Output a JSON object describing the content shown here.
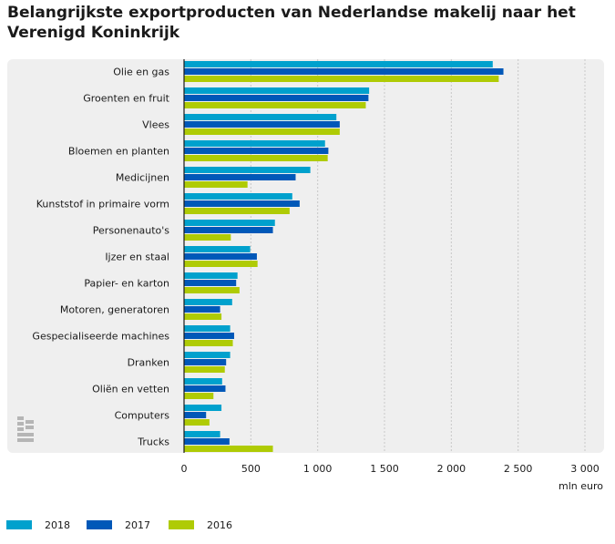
{
  "chart_data": {
    "type": "bar",
    "orientation": "horizontal",
    "title": "Belangrijkste exportproducten van Nederlandse makelij naar het Verenigd Koninkrijk",
    "xlabel": "mln euro",
    "ylabel": "",
    "xlim": [
      0,
      3000
    ],
    "xticks": [
      0,
      500,
      1000,
      1500,
      2000,
      2500,
      3000
    ],
    "xtick_labels": [
      "0",
      "500",
      "1 000",
      "1 500",
      "2 000",
      "2 500",
      "3 000"
    ],
    "grid": true,
    "legend_position": "bottom-left",
    "categories": [
      "Olie en gas",
      "Groenten en fruit",
      "Vlees",
      "Bloemen en planten",
      "Medicijnen",
      "Kunststof in primaire vorm",
      "Personenauto's",
      "Ijzer en staal",
      "Papier- en karton",
      "Motoren, generatoren",
      "Gespecialiseerde machines",
      "Dranken",
      "Oliën en vetten",
      "Computers",
      "Trucks"
    ],
    "series": [
      {
        "name": "2018",
        "color": "#00a1cd",
        "values": [
          2310,
          1385,
          1140,
          1055,
          945,
          810,
          680,
          495,
          400,
          360,
          345,
          345,
          285,
          280,
          270
        ]
      },
      {
        "name": "2017",
        "color": "#0058b8",
        "values": [
          2390,
          1380,
          1165,
          1080,
          835,
          865,
          665,
          545,
          390,
          270,
          375,
          315,
          310,
          165,
          340
        ]
      },
      {
        "name": "2016",
        "color": "#afcb05",
        "values": [
          2355,
          1360,
          1165,
          1075,
          475,
          790,
          350,
          550,
          415,
          280,
          365,
          305,
          220,
          190,
          665
        ]
      }
    ]
  }
}
